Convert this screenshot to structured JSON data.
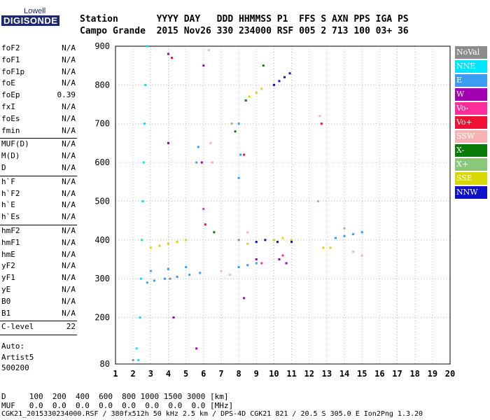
{
  "logo": {
    "top": "Lowell",
    "bottom": "DIGISONDE"
  },
  "header": {
    "labels_row": "Station       YYYY DAY   DDD HHMMSS P1  FFS S AXN PPS IGA PS",
    "values_row": "Campo Grande  2015 Nov26 330 234000 RSF 005 2 713 100 03+ 36"
  },
  "params": [
    {
      "group": [
        {
          "name": "foF2",
          "value": "N/A"
        },
        {
          "name": "foF1",
          "value": "N/A"
        },
        {
          "name": "foF1p",
          "value": "N/A"
        },
        {
          "name": "foE",
          "value": "N/A"
        },
        {
          "name": "foEp",
          "value": "0.39"
        },
        {
          "name": "fxI",
          "value": "N/A"
        },
        {
          "name": "foEs",
          "value": "N/A"
        },
        {
          "name": "fmin",
          "value": "N/A"
        }
      ]
    },
    {
      "group": [
        {
          "name": "MUF(D)",
          "value": "N/A"
        },
        {
          "name": "M(D)",
          "value": "N/A"
        },
        {
          "name": "D",
          "value": "N/A"
        }
      ]
    },
    {
      "group": [
        {
          "name": "h`F",
          "value": "N/A"
        },
        {
          "name": "h`F2",
          "value": "N/A"
        },
        {
          "name": "h`E",
          "value": "N/A"
        },
        {
          "name": "h`Es",
          "value": "N/A"
        }
      ]
    },
    {
      "group": [
        {
          "name": "hmF2",
          "value": "N/A"
        },
        {
          "name": "hmF1",
          "value": "N/A"
        },
        {
          "name": "hmE",
          "value": "N/A"
        },
        {
          "name": "yF2",
          "value": "N/A"
        },
        {
          "name": "yF1",
          "value": "N/A"
        },
        {
          "name": "yE",
          "value": "N/A"
        },
        {
          "name": "B0",
          "value": "N/A"
        },
        {
          "name": "B1",
          "value": "N/A"
        }
      ]
    },
    {
      "group": [
        {
          "name": "C-level",
          "value": "22"
        }
      ]
    }
  ],
  "auto": {
    "line1": "Auto:",
    "line2": "Artist5",
    "line3": "500200"
  },
  "bottom": {
    "d_row": "D     100  200  400  600  800 1000 1500 3000 [km]",
    "muf_row": "MUF   0.0  0.0  0.0  0.0  0.0  0.0  0.0  0.0 [MHz]",
    "footer": "CGK21_2015330234000.RSF / 380fx512h 50 kHz 2.5 km / DPS-4D CGK21 821 / 20.5 S 305.0 E Ion2Png 1.3.20"
  },
  "legend": [
    {
      "label": "NoVal",
      "color": "#8c8c8c"
    },
    {
      "label": "NNE",
      "color": "#00e5ff"
    },
    {
      "label": "E",
      "color": "#3b9cf0"
    },
    {
      "label": "W",
      "color": "#a000b0"
    },
    {
      "label": "Vo-",
      "color": "#ff2e9a"
    },
    {
      "label": "Vo+",
      "color": "#ee1133"
    },
    {
      "label": "SSW",
      "color": "#f7b3b3"
    },
    {
      "label": "X-",
      "color": "#0a7a0a"
    },
    {
      "label": "X+",
      "color": "#88c878"
    },
    {
      "label": "SSE",
      "color": "#d8d800"
    },
    {
      "label": "NNW",
      "color": "#1010c8"
    }
  ],
  "chart_data": {
    "type": "scatter",
    "x_unit": "MHz",
    "y_unit": "km",
    "xlim": [
      1,
      20
    ],
    "ylim": [
      80,
      900
    ],
    "x_ticks": [
      "1",
      "2",
      "3",
      "4",
      "5",
      "6",
      "7",
      "8",
      "9",
      "10",
      "11",
      "12",
      "13",
      "14",
      "15",
      "16",
      "17",
      "18",
      "19",
      "20"
    ],
    "y_ticks": [
      "80",
      "200",
      "300",
      "400",
      "500",
      "600",
      "700",
      "800",
      "900"
    ],
    "y_tick_values": [
      80,
      200,
      300,
      400,
      500,
      600,
      700,
      800,
      900
    ],
    "series": [
      {
        "color": "#00e5ff",
        "points": [
          [
            2.3,
            90
          ],
          [
            2.4,
            200
          ],
          [
            2.5,
            400
          ],
          [
            2.6,
            600
          ],
          [
            2.7,
            800
          ],
          [
            2.8,
            900
          ],
          [
            2.2,
            120
          ],
          [
            2.45,
            300
          ],
          [
            2.55,
            500
          ],
          [
            2.65,
            700
          ]
        ]
      },
      {
        "color": "#3b9cf0",
        "points": [
          [
            2.8,
            290
          ],
          [
            3.2,
            295
          ],
          [
            3.8,
            300
          ],
          [
            4.5,
            305
          ],
          [
            5.2,
            310
          ],
          [
            5.8,
            315
          ],
          [
            3.0,
            320
          ],
          [
            4.0,
            325
          ],
          [
            5.0,
            330
          ],
          [
            8.0,
            330
          ],
          [
            8.5,
            335
          ],
          [
            9.0,
            340
          ],
          [
            13.5,
            405
          ],
          [
            14.0,
            410
          ],
          [
            14.5,
            415
          ],
          [
            15.0,
            420
          ],
          [
            5.6,
            600
          ],
          [
            5.7,
            640
          ],
          [
            8.0,
            560
          ],
          [
            8.0,
            700
          ],
          [
            8.1,
            620
          ]
        ]
      },
      {
        "color": "#d8d800",
        "points": [
          [
            3.0,
            380
          ],
          [
            3.5,
            385
          ],
          [
            4.0,
            390
          ],
          [
            4.5,
            395
          ],
          [
            5.0,
            400
          ],
          [
            8.5,
            390
          ],
          [
            9.0,
            395
          ],
          [
            10.0,
            400
          ],
          [
            10.5,
            405
          ],
          [
            11.0,
            400
          ],
          [
            8.6,
            770
          ],
          [
            9.0,
            780
          ],
          [
            9.3,
            790
          ],
          [
            12.8,
            380
          ],
          [
            13.2,
            380
          ]
        ]
      },
      {
        "color": "#1010c8",
        "points": [
          [
            9.0,
            395
          ],
          [
            9.5,
            400
          ],
          [
            10.0,
            800
          ],
          [
            10.3,
            810
          ],
          [
            10.6,
            820
          ],
          [
            10.9,
            830
          ],
          [
            10.2,
            395
          ],
          [
            11.0,
            395
          ]
        ]
      },
      {
        "color": "#a000b0",
        "points": [
          [
            4.0,
            880
          ],
          [
            4.0,
            650
          ],
          [
            5.9,
            600
          ],
          [
            6.0,
            850
          ],
          [
            8.3,
            250
          ],
          [
            9.0,
            350
          ],
          [
            10.3,
            350
          ],
          [
            10.7,
            340
          ],
          [
            4.3,
            200
          ],
          [
            5.6,
            120
          ]
        ]
      },
      {
        "color": "#f7b3b3",
        "points": [
          [
            6.3,
            890
          ],
          [
            6.4,
            650
          ],
          [
            6.5,
            600
          ],
          [
            7.0,
            320
          ],
          [
            7.5,
            310
          ],
          [
            14.5,
            370
          ],
          [
            15.0,
            360
          ],
          [
            12.6,
            720
          ],
          [
            8.5,
            420
          ]
        ]
      },
      {
        "color": "#ee1133",
        "points": [
          [
            4.2,
            870
          ],
          [
            6.1,
            440
          ],
          [
            12.7,
            700
          ],
          [
            8.3,
            620
          ]
        ]
      },
      {
        "color": "#ff2e9a",
        "points": [
          [
            6.0,
            480
          ],
          [
            9.3,
            340
          ],
          [
            10.5,
            360
          ]
        ]
      },
      {
        "color": "#0a7a0a",
        "points": [
          [
            7.8,
            680
          ],
          [
            9.4,
            850
          ],
          [
            8.4,
            760
          ],
          [
            6.6,
            420
          ]
        ]
      },
      {
        "color": "#88c878",
        "points": [
          [
            7.6,
            700
          ],
          [
            12.5,
            500
          ],
          [
            14.0,
            430
          ]
        ]
      },
      {
        "color": "#8c8c8c",
        "points": [
          [
            2.0,
            90
          ],
          [
            4.1,
            300
          ],
          [
            8.0,
            400
          ]
        ]
      }
    ]
  }
}
